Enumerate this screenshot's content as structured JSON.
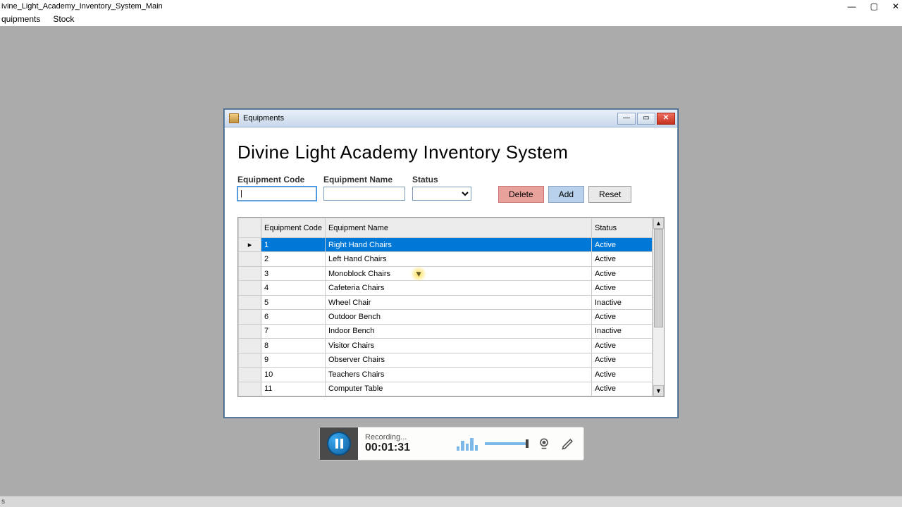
{
  "main_window": {
    "title": "ivine_Light_Academy_Inventory_System_Main"
  },
  "menubar": {
    "items": [
      "quipments",
      "Stock"
    ]
  },
  "modal": {
    "title": "Equipments",
    "heading": "Divine Light Academy Inventory System",
    "filters": {
      "code_label": "Equipment Code",
      "name_label": "Equipment Name",
      "status_label": "Status",
      "code_value": "|",
      "name_value": "",
      "status_value": ""
    },
    "buttons": {
      "delete": "Delete",
      "add": "Add",
      "reset": "Reset"
    },
    "grid": {
      "columns": [
        "Equipment Code",
        "Equipment Name",
        "Status"
      ],
      "selected_row": 0,
      "rows": [
        {
          "code": "1",
          "name": "Right Hand Chairs",
          "status": "Active"
        },
        {
          "code": "2",
          "name": "Left Hand Chairs",
          "status": "Active"
        },
        {
          "code": "3",
          "name": "Monoblock Chairs",
          "status": "Active"
        },
        {
          "code": "4",
          "name": "Cafeteria Chairs",
          "status": "Active"
        },
        {
          "code": "5",
          "name": "Wheel Chair",
          "status": "Inactive"
        },
        {
          "code": "6",
          "name": "Outdoor Bench",
          "status": "Active"
        },
        {
          "code": "7",
          "name": "Indoor Bench",
          "status": "Inactive"
        },
        {
          "code": "8",
          "name": "Visitor Chairs",
          "status": "Active"
        },
        {
          "code": "9",
          "name": "Observer Chairs",
          "status": "Active"
        },
        {
          "code": "10",
          "name": "Teachers Chairs",
          "status": "Active"
        },
        {
          "code": "11",
          "name": "Computer Table",
          "status": "Active"
        }
      ]
    }
  },
  "recorder": {
    "status": "Recording...",
    "time": "00:01:31"
  },
  "taskbar": {
    "text": "s"
  },
  "colors": {
    "desktop_bg": "#ababab",
    "selected_row_bg": "#0078d7",
    "delete_btn_bg": "#e8a29c",
    "add_btn_bg": "#b9d1eb",
    "pause_btn_bg": "#0b5e9e"
  }
}
